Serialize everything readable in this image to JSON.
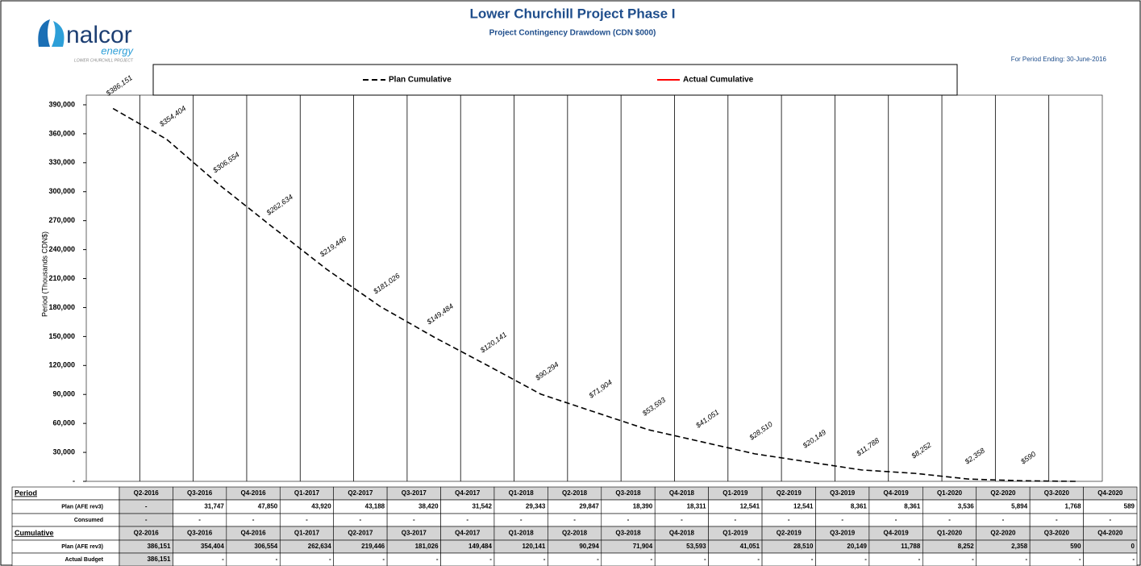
{
  "header": {
    "logo": {
      "name": "nalcor",
      "sub": "energy",
      "tagline": "LOWER CHURCHILL PROJECT"
    },
    "period_ending": "For Period Ending: 30-June-2016"
  },
  "chart_data": {
    "type": "line",
    "title": "Lower Churchill Project Phase I",
    "subtitle": "Project Contingency Drawdown (CDN $000)",
    "y_label": "Period (Thousands CDN$)",
    "categories": [
      "Q2-2016",
      "Q3-2016",
      "Q4-2016",
      "Q1-2017",
      "Q2-2017",
      "Q3-2017",
      "Q4-2017",
      "Q1-2018",
      "Q2-2018",
      "Q3-2018",
      "Q4-2018",
      "Q1-2019",
      "Q2-2019",
      "Q3-2019",
      "Q4-2019",
      "Q1-2020",
      "Q2-2020",
      "Q3-2020",
      "Q4-2020"
    ],
    "series": [
      {
        "name": "Plan Cumulative",
        "color": "#000000",
        "dash": true,
        "values": [
          386151,
          354404,
          306554,
          262634,
          219446,
          181026,
          149484,
          120141,
          90294,
          71904,
          53593,
          41051,
          28510,
          20149,
          11788,
          8252,
          2358,
          590,
          0
        ],
        "value_labels": [
          "$386,151",
          "$354,404",
          "$306,554",
          "$262,634",
          "$219,446",
          "$181,026",
          "$149,484",
          "$120,141",
          "$90,294",
          "$71,904",
          "$53,593",
          "$41,051",
          "$28,510",
          "$20,149",
          "$11,788",
          "$8,252",
          "$2,358",
          "$590",
          null
        ]
      },
      {
        "name": "Actual Cumulative",
        "color": "#ff0000",
        "dash": false,
        "values": [
          null,
          null,
          null,
          null,
          null,
          null,
          null,
          null,
          null,
          null,
          null,
          null,
          null,
          null,
          null,
          null,
          null,
          null,
          null
        ]
      }
    ],
    "ylim": [
      0,
      400000
    ],
    "yticks": [
      {
        "value": 0,
        "label": "-"
      },
      {
        "value": 30000,
        "label": "30,000"
      },
      {
        "value": 60000,
        "label": "60,000"
      },
      {
        "value": 90000,
        "label": "90,000"
      },
      {
        "value": 120000,
        "label": "120,000"
      },
      {
        "value": 150000,
        "label": "150,000"
      },
      {
        "value": 180000,
        "label": "180,000"
      },
      {
        "value": 210000,
        "label": "210,000"
      },
      {
        "value": 240000,
        "label": "240,000"
      },
      {
        "value": 270000,
        "label": "270,000"
      },
      {
        "value": 300000,
        "label": "300,000"
      },
      {
        "value": 330000,
        "label": "330,000"
      },
      {
        "value": 360000,
        "label": "360,000"
      },
      {
        "value": 390000,
        "label": "390,000"
      }
    ],
    "grid": true
  },
  "table": {
    "rows": [
      {
        "label": "Period",
        "cells": [
          "Q2-2016",
          "Q3-2016",
          "Q4-2016",
          "Q1-2017",
          "Q2-2017",
          "Q3-2017",
          "Q4-2017",
          "Q1-2018",
          "Q2-2018",
          "Q3-2018",
          "Q4-2018",
          "Q1-2019",
          "Q2-2019",
          "Q3-2019",
          "Q4-2019",
          "Q1-2020",
          "Q2-2020",
          "Q3-2020",
          "Q4-2020"
        ]
      },
      {
        "label": "Plan (AFE rev3)",
        "cells": [
          "-",
          "31,747",
          "47,850",
          "43,920",
          "43,188",
          "38,420",
          "31,542",
          "29,343",
          "29,847",
          "18,390",
          "18,311",
          "12,541",
          "12,541",
          "8,361",
          "8,361",
          "3,536",
          "5,894",
          "1,768",
          "589"
        ]
      },
      {
        "label": "Consumed",
        "cells": [
          "-",
          "-",
          "-",
          "-",
          "-",
          "-",
          "-",
          "-",
          "-",
          "-",
          "-",
          "-",
          "-",
          "-",
          "-",
          "-",
          "-",
          "-",
          "-"
        ]
      },
      {
        "label": "Cumulative",
        "cells": [
          "Q2-2016",
          "Q3-2016",
          "Q4-2016",
          "Q1-2017",
          "Q2-2017",
          "Q3-2017",
          "Q4-2017",
          "Q1-2018",
          "Q2-2018",
          "Q3-2018",
          "Q4-2018",
          "Q1-2019",
          "Q2-2019",
          "Q3-2019",
          "Q4-2019",
          "Q1-2020",
          "Q2-2020",
          "Q3-2020",
          "Q4-2020"
        ]
      },
      {
        "label": "Plan (AFE rev3)",
        "cells": [
          "386,151",
          "354,404",
          "306,554",
          "262,634",
          "219,446",
          "181,026",
          "149,484",
          "120,141",
          "90,294",
          "71,904",
          "53,593",
          "41,051",
          "28,510",
          "20,149",
          "11,788",
          "8,252",
          "2,358",
          "590",
          "0"
        ]
      },
      {
        "label": "Actual Budget",
        "cells": [
          "386,151",
          "-",
          "-",
          "-",
          "-",
          "-",
          "-",
          "-",
          "-",
          "-",
          "-",
          "-",
          "-",
          "-",
          "-",
          "-",
          "-",
          "-",
          "-"
        ]
      }
    ]
  }
}
